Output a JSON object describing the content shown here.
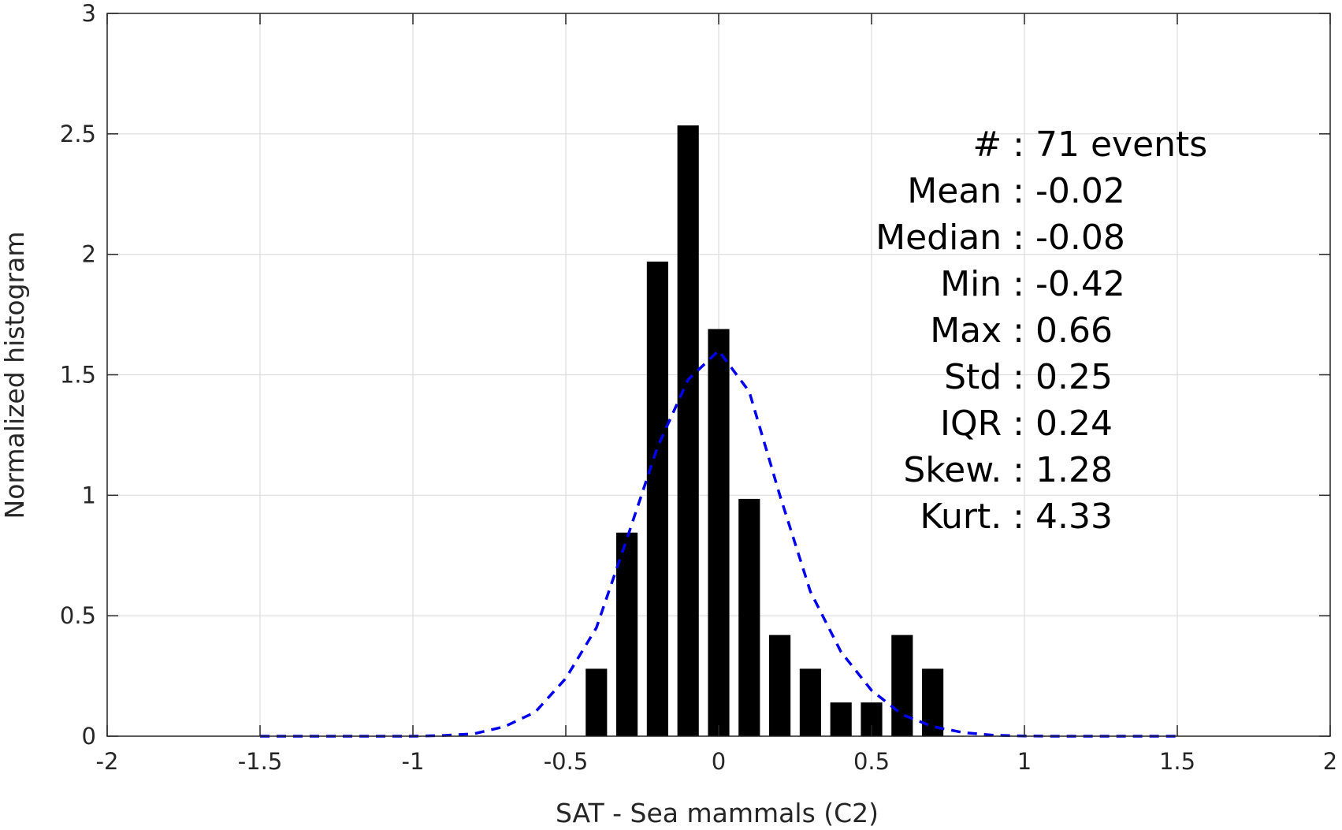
{
  "chart_data": {
    "type": "bar",
    "xlabel": "SAT - Sea mammals (C2)",
    "ylabel": "Normalized histogram",
    "xlim": [
      -2,
      2
    ],
    "ylim": [
      0,
      3
    ],
    "grid": true,
    "xticks": [
      {
        "value": -2,
        "label": "-2"
      },
      {
        "value": -1.5,
        "label": "-1.5"
      },
      {
        "value": -1,
        "label": "-1"
      },
      {
        "value": -0.5,
        "label": "-0.5"
      },
      {
        "value": 0,
        "label": "0"
      },
      {
        "value": 0.5,
        "label": "0.5"
      },
      {
        "value": 1,
        "label": "1"
      },
      {
        "value": 1.5,
        "label": "1.5"
      },
      {
        "value": 2,
        "label": "2"
      }
    ],
    "yticks": [
      {
        "value": 0,
        "label": "0"
      },
      {
        "value": 0.5,
        "label": "0.5"
      },
      {
        "value": 1,
        "label": "1"
      },
      {
        "value": 1.5,
        "label": "1.5"
      },
      {
        "value": 2,
        "label": "2"
      },
      {
        "value": 2.5,
        "label": "2.5"
      },
      {
        "value": 3,
        "label": "3"
      }
    ],
    "bars": {
      "color": "#000000",
      "bin_width": 0.1,
      "centers": [
        -0.4,
        -0.3,
        -0.2,
        -0.1,
        0.0,
        0.1,
        0.2,
        0.3,
        0.4,
        0.5,
        0.6,
        0.7
      ],
      "values": [
        0.28,
        0.845,
        1.97,
        2.535,
        1.69,
        0.985,
        0.42,
        0.28,
        0.14,
        0.14,
        0.42,
        0.28
      ]
    },
    "fit_curve": {
      "style": "dashed",
      "color": "#0000ee",
      "x": [
        -1.5,
        -1.4,
        -1.3,
        -1.2,
        -1.1,
        -1.0,
        -0.9,
        -0.8,
        -0.7,
        -0.6,
        -0.5,
        -0.4,
        -0.3,
        -0.2,
        -0.1,
        0.0,
        0.1,
        0.2,
        0.3,
        0.4,
        0.5,
        0.6,
        0.7,
        0.8,
        0.9,
        1.0,
        1.1,
        1.2,
        1.3,
        1.4,
        1.5
      ],
      "y": [
        0,
        0,
        0,
        0,
        0,
        0,
        0.003,
        0.01,
        0.04,
        0.1,
        0.24,
        0.45,
        0.82,
        1.2,
        1.48,
        1.6,
        1.43,
        1.0,
        0.6,
        0.35,
        0.19,
        0.09,
        0.04,
        0.015,
        0.004,
        0.001,
        0,
        0,
        0,
        0,
        0
      ]
    },
    "annotations": [
      {
        "label": "#  :",
        "value": "71 events"
      },
      {
        "label": "Mean :",
        "value": "-0.02"
      },
      {
        "label": "Median :",
        "value": "-0.08"
      },
      {
        "label": "Min :",
        "value": "-0.42"
      },
      {
        "label": "Max :",
        "value": "0.66"
      },
      {
        "label": "Std :",
        "value": "0.25"
      },
      {
        "label": "IQR :",
        "value": "0.24"
      },
      {
        "label": "Skew. :",
        "value": "1.28"
      },
      {
        "label": "Kurt. :",
        "value": "4.33"
      }
    ]
  }
}
